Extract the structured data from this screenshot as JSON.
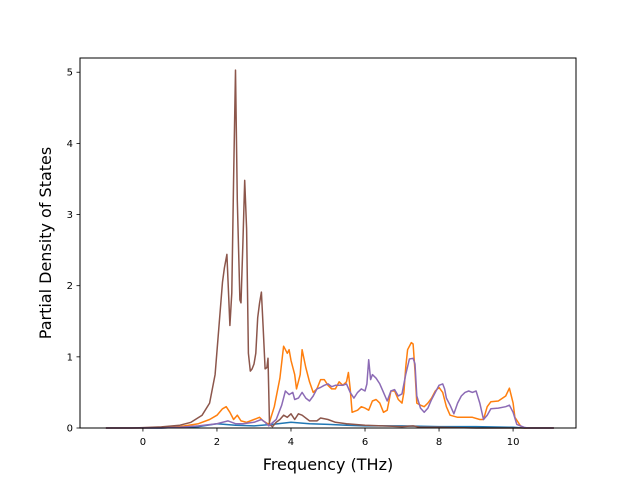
{
  "chart_data": {
    "type": "line",
    "title": "",
    "xlabel": "Frequency (THz)",
    "ylabel": "Partial Density of States",
    "xlim": [
      -1.7,
      11.7
    ],
    "ylim": [
      0,
      5.2
    ],
    "xticks": [
      0,
      2,
      4,
      6,
      8,
      10
    ],
    "yticks": [
      0,
      1,
      2,
      3,
      4,
      5
    ],
    "grid": false,
    "legend": "none",
    "series": [
      {
        "color": "#1f77b4",
        "points": [
          [
            -1,
            0
          ],
          [
            0.5,
            0
          ],
          [
            1.5,
            0.02
          ],
          [
            2,
            0.06
          ],
          [
            2.5,
            0.04
          ],
          [
            3,
            0.03
          ],
          [
            3.5,
            0.05
          ],
          [
            4,
            0.08
          ],
          [
            4.5,
            0.06
          ],
          [
            5,
            0.05
          ],
          [
            5.5,
            0.04
          ],
          [
            6,
            0.03
          ],
          [
            7,
            0.03
          ],
          [
            8,
            0.02
          ],
          [
            9,
            0.02
          ],
          [
            10,
            0.01
          ],
          [
            10.3,
            0
          ],
          [
            11.1,
            0
          ]
        ]
      },
      {
        "color": "#ff7f0e",
        "points": [
          [
            -1,
            0
          ],
          [
            0,
            0
          ],
          [
            0.5,
            0.005
          ],
          [
            1,
            0.02
          ],
          [
            1.5,
            0.06
          ],
          [
            1.8,
            0.12
          ],
          [
            2,
            0.18
          ],
          [
            2.15,
            0.27
          ],
          [
            2.25,
            0.3
          ],
          [
            2.35,
            0.22
          ],
          [
            2.45,
            0.12
          ],
          [
            2.55,
            0.18
          ],
          [
            2.65,
            0.1
          ],
          [
            2.8,
            0.08
          ],
          [
            3,
            0.12
          ],
          [
            3.15,
            0.15
          ],
          [
            3.25,
            0.1
          ],
          [
            3.4,
            0.05
          ],
          [
            3.55,
            0.3
          ],
          [
            3.7,
            0.7
          ],
          [
            3.8,
            1.15
          ],
          [
            3.9,
            1.05
          ],
          [
            3.95,
            1.1
          ],
          [
            4,
            0.95
          ],
          [
            4.1,
            0.75
          ],
          [
            4.15,
            0.55
          ],
          [
            4.25,
            0.75
          ],
          [
            4.3,
            1.1
          ],
          [
            4.4,
            0.85
          ],
          [
            4.5,
            0.65
          ],
          [
            4.6,
            0.5
          ],
          [
            4.7,
            0.55
          ],
          [
            4.8,
            0.68
          ],
          [
            4.9,
            0.68
          ],
          [
            5,
            0.6
          ],
          [
            5.1,
            0.55
          ],
          [
            5.2,
            0.55
          ],
          [
            5.3,
            0.65
          ],
          [
            5.4,
            0.6
          ],
          [
            5.5,
            0.65
          ],
          [
            5.55,
            0.78
          ],
          [
            5.6,
            0.55
          ],
          [
            5.65,
            0.22
          ],
          [
            5.8,
            0.25
          ],
          [
            5.9,
            0.3
          ],
          [
            6,
            0.28
          ],
          [
            6.1,
            0.25
          ],
          [
            6.2,
            0.38
          ],
          [
            6.3,
            0.4
          ],
          [
            6.4,
            0.35
          ],
          [
            6.5,
            0.22
          ],
          [
            6.6,
            0.25
          ],
          [
            6.7,
            0.52
          ],
          [
            6.8,
            0.52
          ],
          [
            6.9,
            0.4
          ],
          [
            7,
            0.35
          ],
          [
            7.05,
            0.5
          ],
          [
            7.1,
            0.85
          ],
          [
            7.15,
            1.1
          ],
          [
            7.25,
            1.2
          ],
          [
            7.3,
            1.18
          ],
          [
            7.35,
            0.8
          ],
          [
            7.4,
            0.35
          ],
          [
            7.5,
            0.32
          ],
          [
            7.6,
            0.3
          ],
          [
            7.7,
            0.35
          ],
          [
            7.8,
            0.42
          ],
          [
            7.9,
            0.52
          ],
          [
            8,
            0.57
          ],
          [
            8.1,
            0.5
          ],
          [
            8.2,
            0.3
          ],
          [
            8.3,
            0.18
          ],
          [
            8.5,
            0.15
          ],
          [
            8.7,
            0.15
          ],
          [
            8.9,
            0.15
          ],
          [
            9.1,
            0.12
          ],
          [
            9.2,
            0.12
          ],
          [
            9.3,
            0.3
          ],
          [
            9.4,
            0.37
          ],
          [
            9.6,
            0.38
          ],
          [
            9.8,
            0.45
          ],
          [
            9.9,
            0.56
          ],
          [
            10,
            0.35
          ],
          [
            10.05,
            0.15
          ],
          [
            10.2,
            0.03
          ],
          [
            10.3,
            0
          ],
          [
            11.1,
            0
          ]
        ]
      },
      {
        "color": "#8c564b",
        "points": [
          [
            -1,
            0
          ],
          [
            -0.3,
            0
          ],
          [
            0,
            0.005
          ],
          [
            0.5,
            0.015
          ],
          [
            1,
            0.04
          ],
          [
            1.3,
            0.08
          ],
          [
            1.6,
            0.18
          ],
          [
            1.8,
            0.35
          ],
          [
            1.95,
            0.75
          ],
          [
            2.05,
            1.4
          ],
          [
            2.15,
            2.05
          ],
          [
            2.2,
            2.25
          ],
          [
            2.27,
            2.44
          ],
          [
            2.35,
            1.44
          ],
          [
            2.4,
            1.9
          ],
          [
            2.45,
            3.5
          ],
          [
            2.5,
            5.03
          ],
          [
            2.55,
            3.2
          ],
          [
            2.62,
            1.8
          ],
          [
            2.65,
            1.76
          ],
          [
            2.7,
            2.6
          ],
          [
            2.75,
            3.48
          ],
          [
            2.8,
            2.8
          ],
          [
            2.85,
            1.05
          ],
          [
            2.9,
            0.8
          ],
          [
            2.95,
            0.83
          ],
          [
            3,
            0.9
          ],
          [
            3.05,
            1.05
          ],
          [
            3.1,
            1.55
          ],
          [
            3.15,
            1.75
          ],
          [
            3.2,
            1.91
          ],
          [
            3.25,
            1.4
          ],
          [
            3.3,
            0.83
          ],
          [
            3.35,
            0.85
          ],
          [
            3.38,
            0.98
          ],
          [
            3.42,
            0.05
          ],
          [
            3.5,
            0.02
          ],
          [
            3.6,
            0.08
          ],
          [
            3.7,
            0.12
          ],
          [
            3.8,
            0.18
          ],
          [
            3.9,
            0.15
          ],
          [
            4,
            0.2
          ],
          [
            4.1,
            0.12
          ],
          [
            4.2,
            0.2
          ],
          [
            4.3,
            0.18
          ],
          [
            4.5,
            0.1
          ],
          [
            4.7,
            0.1
          ],
          [
            4.8,
            0.14
          ],
          [
            5,
            0.12
          ],
          [
            5.2,
            0.08
          ],
          [
            5.5,
            0.06
          ],
          [
            6,
            0.04
          ],
          [
            6.5,
            0.03
          ],
          [
            7,
            0.02
          ],
          [
            7.3,
            0.03
          ],
          [
            7.5,
            0.01
          ],
          [
            8,
            0.01
          ],
          [
            9,
            0
          ],
          [
            11.1,
            0
          ]
        ]
      },
      {
        "color": "#8c6bb5",
        "points": [
          [
            -1,
            0
          ],
          [
            0.5,
            0
          ],
          [
            1,
            0.01
          ],
          [
            1.5,
            0.03
          ],
          [
            2,
            0.06
          ],
          [
            2.3,
            0.1
          ],
          [
            2.5,
            0.06
          ],
          [
            2.7,
            0.06
          ],
          [
            3,
            0.08
          ],
          [
            3.2,
            0.12
          ],
          [
            3.3,
            0.08
          ],
          [
            3.4,
            0.03
          ],
          [
            3.6,
            0.12
          ],
          [
            3.75,
            0.32
          ],
          [
            3.85,
            0.52
          ],
          [
            3.95,
            0.47
          ],
          [
            4.05,
            0.5
          ],
          [
            4.1,
            0.4
          ],
          [
            4.2,
            0.42
          ],
          [
            4.3,
            0.5
          ],
          [
            4.4,
            0.42
          ],
          [
            4.5,
            0.38
          ],
          [
            4.6,
            0.45
          ],
          [
            4.7,
            0.55
          ],
          [
            4.8,
            0.57
          ],
          [
            4.9,
            0.6
          ],
          [
            5,
            0.62
          ],
          [
            5.1,
            0.58
          ],
          [
            5.2,
            0.6
          ],
          [
            5.3,
            0.6
          ],
          [
            5.4,
            0.6
          ],
          [
            5.5,
            0.62
          ],
          [
            5.6,
            0.5
          ],
          [
            5.7,
            0.42
          ],
          [
            5.8,
            0.5
          ],
          [
            5.9,
            0.55
          ],
          [
            6,
            0.52
          ],
          [
            6.05,
            0.62
          ],
          [
            6.1,
            0.96
          ],
          [
            6.15,
            0.68
          ],
          [
            6.2,
            0.75
          ],
          [
            6.3,
            0.7
          ],
          [
            6.4,
            0.62
          ],
          [
            6.5,
            0.5
          ],
          [
            6.6,
            0.38
          ],
          [
            6.7,
            0.52
          ],
          [
            6.8,
            0.54
          ],
          [
            6.9,
            0.45
          ],
          [
            7,
            0.48
          ],
          [
            7.1,
            0.75
          ],
          [
            7.2,
            0.97
          ],
          [
            7.3,
            0.98
          ],
          [
            7.35,
            0.9
          ],
          [
            7.4,
            0.45
          ],
          [
            7.5,
            0.28
          ],
          [
            7.6,
            0.22
          ],
          [
            7.7,
            0.28
          ],
          [
            7.8,
            0.4
          ],
          [
            7.9,
            0.5
          ],
          [
            8,
            0.6
          ],
          [
            8.1,
            0.62
          ],
          [
            8.15,
            0.55
          ],
          [
            8.2,
            0.42
          ],
          [
            8.3,
            0.32
          ],
          [
            8.4,
            0.2
          ],
          [
            8.5,
            0.35
          ],
          [
            8.6,
            0.45
          ],
          [
            8.7,
            0.5
          ],
          [
            8.8,
            0.52
          ],
          [
            8.9,
            0.5
          ],
          [
            9,
            0.52
          ],
          [
            9.1,
            0.35
          ],
          [
            9.2,
            0.12
          ],
          [
            9.3,
            0.18
          ],
          [
            9.4,
            0.27
          ],
          [
            9.6,
            0.28
          ],
          [
            9.8,
            0.3
          ],
          [
            9.9,
            0.32
          ],
          [
            10,
            0.22
          ],
          [
            10.1,
            0.05
          ],
          [
            10.3,
            0.01
          ],
          [
            10.4,
            0
          ],
          [
            11.1,
            0
          ]
        ]
      }
    ]
  }
}
